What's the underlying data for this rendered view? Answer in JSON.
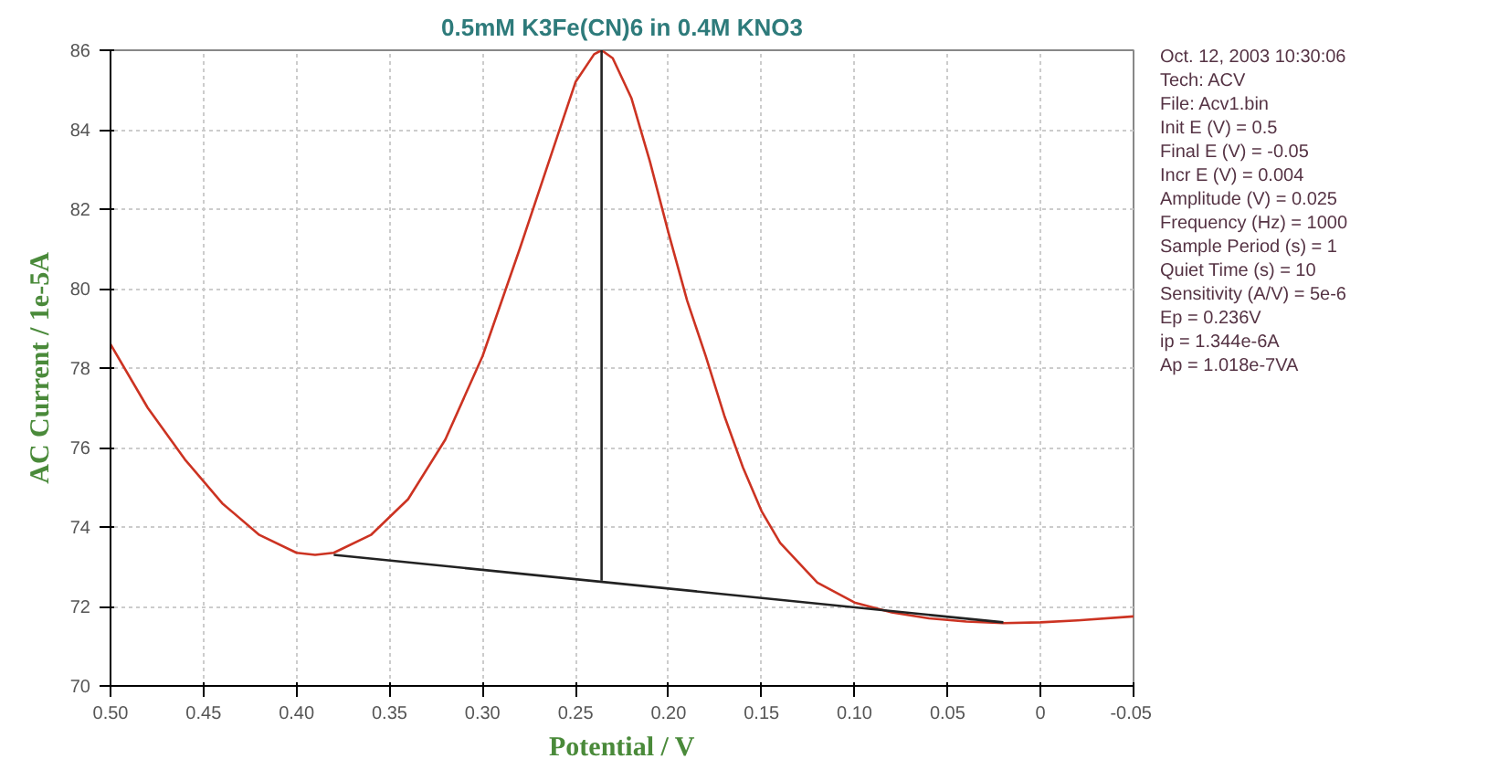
{
  "chart_data": {
    "type": "line",
    "title": "0.5mM K3Fe(CN)6 in 0.4M KNO3",
    "xlabel": "Potential / V",
    "ylabel": "AC Current / 1e-5A",
    "xlim": [
      0.5,
      -0.05
    ],
    "ylim": [
      70,
      86
    ],
    "xticks": [
      {
        "value": 0.5,
        "label": "0.50"
      },
      0.45,
      {
        "value": 0.4,
        "label": "0.40"
      },
      0.35,
      {
        "value": 0.3,
        "label": "0.30"
      },
      0.25,
      {
        "value": 0.2,
        "label": "0.20"
      },
      0.15,
      {
        "value": 0.1,
        "label": "0.10"
      },
      0.05,
      0,
      -0.05
    ],
    "yticks": [
      70,
      72,
      74,
      76,
      78,
      80,
      82,
      84,
      86
    ],
    "grid": true,
    "marker": "none",
    "line_style": "solid",
    "series": [
      {
        "color": "#cc3322",
        "x": [
          0.5,
          0.48,
          0.46,
          0.44,
          0.42,
          0.4,
          0.39,
          0.38,
          0.36,
          0.34,
          0.32,
          0.3,
          0.28,
          0.26,
          0.25,
          0.24,
          0.236,
          0.23,
          0.22,
          0.21,
          0.2,
          0.19,
          0.18,
          0.17,
          0.16,
          0.15,
          0.14,
          0.12,
          0.1,
          0.08,
          0.06,
          0.04,
          0.02,
          0.0,
          -0.02,
          -0.05
        ],
        "values": [
          78.6,
          77.0,
          75.7,
          74.6,
          73.8,
          73.35,
          73.3,
          73.35,
          73.8,
          74.7,
          76.2,
          78.3,
          81.0,
          83.8,
          85.2,
          85.9,
          86.0,
          85.8,
          84.8,
          83.2,
          81.4,
          79.7,
          78.3,
          76.8,
          75.5,
          74.4,
          73.6,
          72.6,
          72.1,
          71.85,
          71.7,
          71.62,
          71.58,
          71.6,
          71.65,
          71.75
        ]
      },
      {
        "color": "#222222",
        "x": [
          0.38,
          0.02
        ],
        "values": [
          73.3,
          71.6
        ]
      },
      {
        "color": "#222222",
        "x": [
          0.236,
          0.236
        ],
        "values": [
          72.65,
          86.0
        ]
      }
    ],
    "annotations": [
      "Oct. 12, 2003   10:30:06",
      "Tech: ACV",
      "File: Acv1.bin",
      "Init E (V) = 0.5",
      "Final E (V) = -0.05",
      "Incr E (V) = 0.004",
      "Amplitude (V) = 0.025",
      "Frequency (Hz) = 1000",
      "Sample Period (s) = 1",
      "Quiet Time (s) = 10",
      "Sensitivity (A/V) = 5e-6",
      "Ep = 0.236V",
      "ip = 1.344e-6A",
      "Ap = 1.018e-7VA"
    ]
  }
}
